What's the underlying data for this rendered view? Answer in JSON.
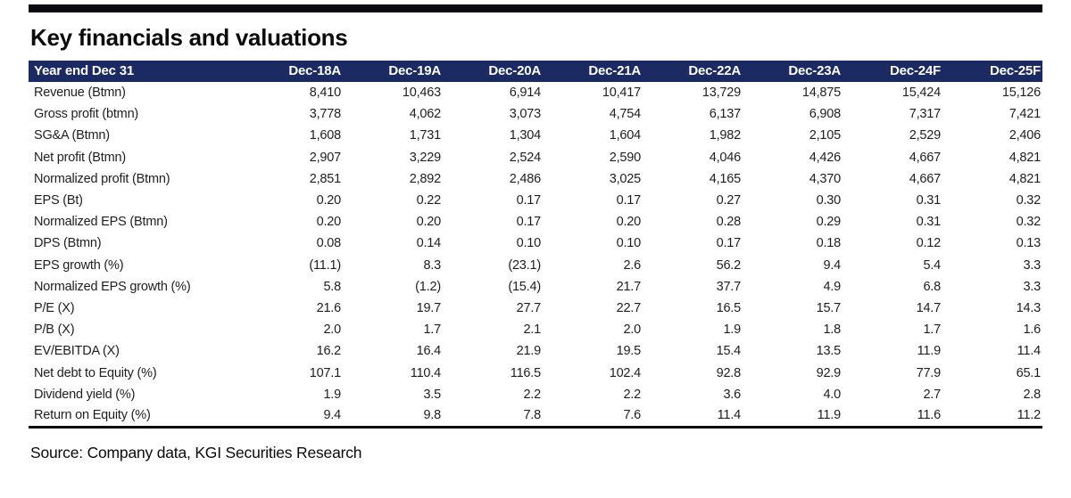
{
  "page": {
    "title": "Key financials and valuations",
    "source": "Source: Company data, KGI Securities Research"
  },
  "colors": {
    "header_bg": "#1b2a63",
    "header_text": "#ffffff",
    "rule": "#0b0b0f"
  },
  "chart_data": {
    "type": "table",
    "title": "Key financials and valuations",
    "header": [
      "Year end Dec 31",
      "Dec-18A",
      "Dec-19A",
      "Dec-20A",
      "Dec-21A",
      "Dec-22A",
      "Dec-23A",
      "Dec-24F",
      "Dec-25F"
    ],
    "rows": [
      {
        "label": "Revenue (Btmn)",
        "values": [
          "8,410",
          "10,463",
          "6,914",
          "10,417",
          "13,729",
          "14,875",
          "15,424",
          "15,126"
        ]
      },
      {
        "label": "Gross profit (btmn)",
        "values": [
          "3,778",
          "4,062",
          "3,073",
          "4,754",
          "6,137",
          "6,908",
          "7,317",
          "7,421"
        ]
      },
      {
        "label": "SG&A (Btmn)",
        "values": [
          "1,608",
          "1,731",
          "1,304",
          "1,604",
          "1,982",
          "2,105",
          "2,529",
          "2,406"
        ]
      },
      {
        "label": "Net profit (Btmn)",
        "values": [
          "2,907",
          "3,229",
          "2,524",
          "2,590",
          "4,046",
          "4,426",
          "4,667",
          "4,821"
        ]
      },
      {
        "label": "Normalized profit (Btmn)",
        "values": [
          "2,851",
          "2,892",
          "2,486",
          "3,025",
          "4,165",
          "4,370",
          "4,667",
          "4,821"
        ]
      },
      {
        "label": "EPS (Bt)",
        "values": [
          "0.20",
          "0.22",
          "0.17",
          "0.17",
          "0.27",
          "0.30",
          "0.31",
          "0.32"
        ]
      },
      {
        "label": "Normalized EPS (Btmn)",
        "values": [
          "0.20",
          "0.20",
          "0.17",
          "0.20",
          "0.28",
          "0.29",
          "0.31",
          "0.32"
        ]
      },
      {
        "label": "DPS (Btmn)",
        "values": [
          "0.08",
          "0.14",
          "0.10",
          "0.10",
          "0.17",
          "0.18",
          "0.12",
          "0.13"
        ]
      },
      {
        "label": "EPS growth (%)",
        "values": [
          "(11.1)",
          "8.3",
          "(23.1)",
          "2.6",
          "56.2",
          "9.4",
          "5.4",
          "3.3"
        ]
      },
      {
        "label": "Normalized EPS growth (%)",
        "values": [
          "5.8",
          "(1.2)",
          "(15.4)",
          "21.7",
          "37.7",
          "4.9",
          "6.8",
          "3.3"
        ]
      },
      {
        "label": "P/E (X)",
        "values": [
          "21.6",
          "19.7",
          "27.7",
          "22.7",
          "16.5",
          "15.7",
          "14.7",
          "14.3"
        ]
      },
      {
        "label": "P/B (X)",
        "values": [
          "2.0",
          "1.7",
          "2.1",
          "2.0",
          "1.9",
          "1.8",
          "1.7",
          "1.6"
        ]
      },
      {
        "label": "EV/EBITDA (X)",
        "values": [
          "16.2",
          "16.4",
          "21.9",
          "19.5",
          "15.4",
          "13.5",
          "11.9",
          "11.4"
        ]
      },
      {
        "label": "Net debt to Equity (%)",
        "values": [
          "107.1",
          "110.4",
          "116.5",
          "102.4",
          "92.8",
          "92.9",
          "77.9",
          "65.1"
        ]
      },
      {
        "label": "Dividend yield (%)",
        "values": [
          "1.9",
          "3.5",
          "2.2",
          "2.2",
          "3.6",
          "4.0",
          "2.7",
          "2.8"
        ]
      },
      {
        "label": "Return on Equity (%)",
        "values": [
          "9.4",
          "9.8",
          "7.8",
          "7.6",
          "11.4",
          "11.9",
          "11.6",
          "11.2"
        ]
      }
    ]
  }
}
